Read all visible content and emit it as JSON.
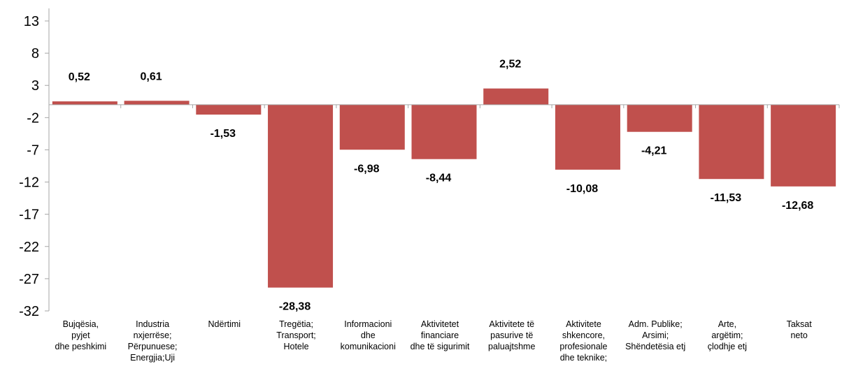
{
  "chart_data": {
    "type": "bar",
    "categories": [
      [
        "Bujqësia,",
        "pyjet",
        "dhe peshkimi"
      ],
      [
        "Industria",
        "nxjerrëse;",
        "Përpunuese;",
        "Energjia;Uji"
      ],
      [
        "Ndërtimi"
      ],
      [
        "Tregëtia;",
        "Transport;",
        "Hotele"
      ],
      [
        "Informacioni",
        "dhe",
        "komunikacioni"
      ],
      [
        "Aktivitetet",
        "financiare",
        "dhe të sigurimit"
      ],
      [
        "Aktivitete të",
        "pasurive të",
        "paluajtshme"
      ],
      [
        "Aktivitete",
        "shkencore,",
        "profesionale",
        "dhe teknike;"
      ],
      [
        "Adm. Publike;",
        "Arsimi;",
        "Shëndetësia etj"
      ],
      [
        "Arte,",
        "argëtim;",
        "çlodhje etj"
      ],
      [
        "Taksat",
        "neto"
      ]
    ],
    "values": [
      0.52,
      0.61,
      -1.53,
      -28.38,
      -6.98,
      -8.44,
      2.52,
      -10.08,
      -4.21,
      -11.53,
      -12.68
    ],
    "value_labels": [
      "0,52",
      "0,61",
      "-1,53",
      "-28,38",
      "-6,98",
      "-8,44",
      "2,52",
      "-10,08",
      "-4,21",
      "-11,53",
      "-12,68"
    ],
    "yticks": [
      "13",
      "8",
      "3",
      "-2",
      "-7",
      "-12",
      "-17",
      "-22",
      "-27",
      "-32"
    ],
    "ylim": [
      -32,
      13
    ],
    "bar_color": "#c0504d",
    "axis_color": "#a6a6a6",
    "grid": false,
    "legend": "none"
  }
}
